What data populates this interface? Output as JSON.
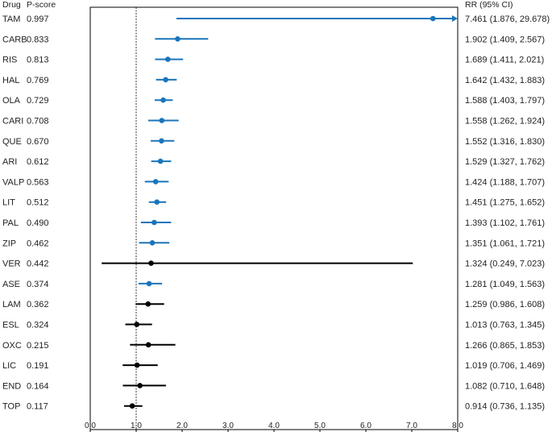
{
  "headers": {
    "drug": "Drug",
    "pscore": "P-score",
    "rr": "RR (95% CI)"
  },
  "colors": {
    "significant": "#1a75bb",
    "nonsignificant": "#000000",
    "axis": "#000000"
  },
  "chart_data": {
    "type": "forest",
    "xlim": [
      0,
      8
    ],
    "x_ticks": [
      "0.0",
      "1.0",
      "2.0",
      "3.0",
      "4.0",
      "5.0",
      "6.0",
      "7.0",
      "8.0"
    ],
    "x_tick_values": [
      0,
      1,
      2,
      3,
      4,
      5,
      6,
      7,
      8
    ],
    "reference_line": 1,
    "rows": [
      {
        "drug": "TAM",
        "pscore": "0.997",
        "rr": 7.461,
        "lo": 1.876,
        "hi": 29.678,
        "rr_text": "7.461 (1.876, 29.678)",
        "significant": true,
        "arrow": true
      },
      {
        "drug": "CARB",
        "pscore": "0.833",
        "rr": 1.902,
        "lo": 1.409,
        "hi": 2.567,
        "rr_text": "1.902 (1.409, 2.567)",
        "significant": true
      },
      {
        "drug": "RIS",
        "pscore": "0.813",
        "rr": 1.689,
        "lo": 1.411,
        "hi": 2.021,
        "rr_text": "1.689 (1.411, 2.021)",
        "significant": true
      },
      {
        "drug": "HAL",
        "pscore": "0.769",
        "rr": 1.642,
        "lo": 1.432,
        "hi": 1.883,
        "rr_text": "1.642 (1.432, 1.883)",
        "significant": true
      },
      {
        "drug": "OLA",
        "pscore": "0.729",
        "rr": 1.588,
        "lo": 1.403,
        "hi": 1.797,
        "rr_text": "1.588 (1.403, 1.797)",
        "significant": true
      },
      {
        "drug": "CARI",
        "pscore": "0.708",
        "rr": 1.558,
        "lo": 1.262,
        "hi": 1.924,
        "rr_text": "1.558 (1.262, 1.924)",
        "significant": true
      },
      {
        "drug": "QUE",
        "pscore": "0.670",
        "rr": 1.552,
        "lo": 1.316,
        "hi": 1.83,
        "rr_text": "1.552 (1.316, 1.830)",
        "significant": true
      },
      {
        "drug": "ARI",
        "pscore": "0.612",
        "rr": 1.529,
        "lo": 1.327,
        "hi": 1.762,
        "rr_text": "1.529 (1.327, 1.762)",
        "significant": true
      },
      {
        "drug": "VALP",
        "pscore": "0.563",
        "rr": 1.424,
        "lo": 1.188,
        "hi": 1.707,
        "rr_text": "1.424 (1.188, 1.707)",
        "significant": true
      },
      {
        "drug": "LIT",
        "pscore": "0.512",
        "rr": 1.451,
        "lo": 1.275,
        "hi": 1.652,
        "rr_text": "1.451 (1.275, 1.652)",
        "significant": true
      },
      {
        "drug": "PAL",
        "pscore": "0.490",
        "rr": 1.393,
        "lo": 1.102,
        "hi": 1.761,
        "rr_text": "1.393 (1.102, 1.761)",
        "significant": true
      },
      {
        "drug": "ZIP",
        "pscore": "0.462",
        "rr": 1.351,
        "lo": 1.061,
        "hi": 1.721,
        "rr_text": "1.351 (1.061, 1.721)",
        "significant": true
      },
      {
        "drug": "VER",
        "pscore": "0.442",
        "rr": 1.324,
        "lo": 0.249,
        "hi": 7.023,
        "rr_text": "1.324 (0.249, 7.023)",
        "significant": false
      },
      {
        "drug": "ASE",
        "pscore": "0.374",
        "rr": 1.281,
        "lo": 1.049,
        "hi": 1.563,
        "rr_text": "1.281 (1.049, 1.563)",
        "significant": true
      },
      {
        "drug": "LAM",
        "pscore": "0.362",
        "rr": 1.259,
        "lo": 0.986,
        "hi": 1.608,
        "rr_text": "1.259 (0.986, 1.608)",
        "significant": false
      },
      {
        "drug": "ESL",
        "pscore": "0.324",
        "rr": 1.013,
        "lo": 0.763,
        "hi": 1.345,
        "rr_text": "1.013 (0.763, 1.345)",
        "significant": false
      },
      {
        "drug": "OXC",
        "pscore": "0.215",
        "rr": 1.266,
        "lo": 0.865,
        "hi": 1.853,
        "rr_text": "1.266 (0.865, 1.853)",
        "significant": false
      },
      {
        "drug": "LIC",
        "pscore": "0.191",
        "rr": 1.019,
        "lo": 0.706,
        "hi": 1.469,
        "rr_text": "1.019 (0.706, 1.469)",
        "significant": false
      },
      {
        "drug": "END",
        "pscore": "0.164",
        "rr": 1.082,
        "lo": 0.71,
        "hi": 1.648,
        "rr_text": "1.082 (0.710, 1.648)",
        "significant": false
      },
      {
        "drug": "TOP",
        "pscore": "0.117",
        "rr": 0.914,
        "lo": 0.736,
        "hi": 1.135,
        "rr_text": "0.914 (0.736, 1.135)",
        "significant": false
      }
    ]
  }
}
